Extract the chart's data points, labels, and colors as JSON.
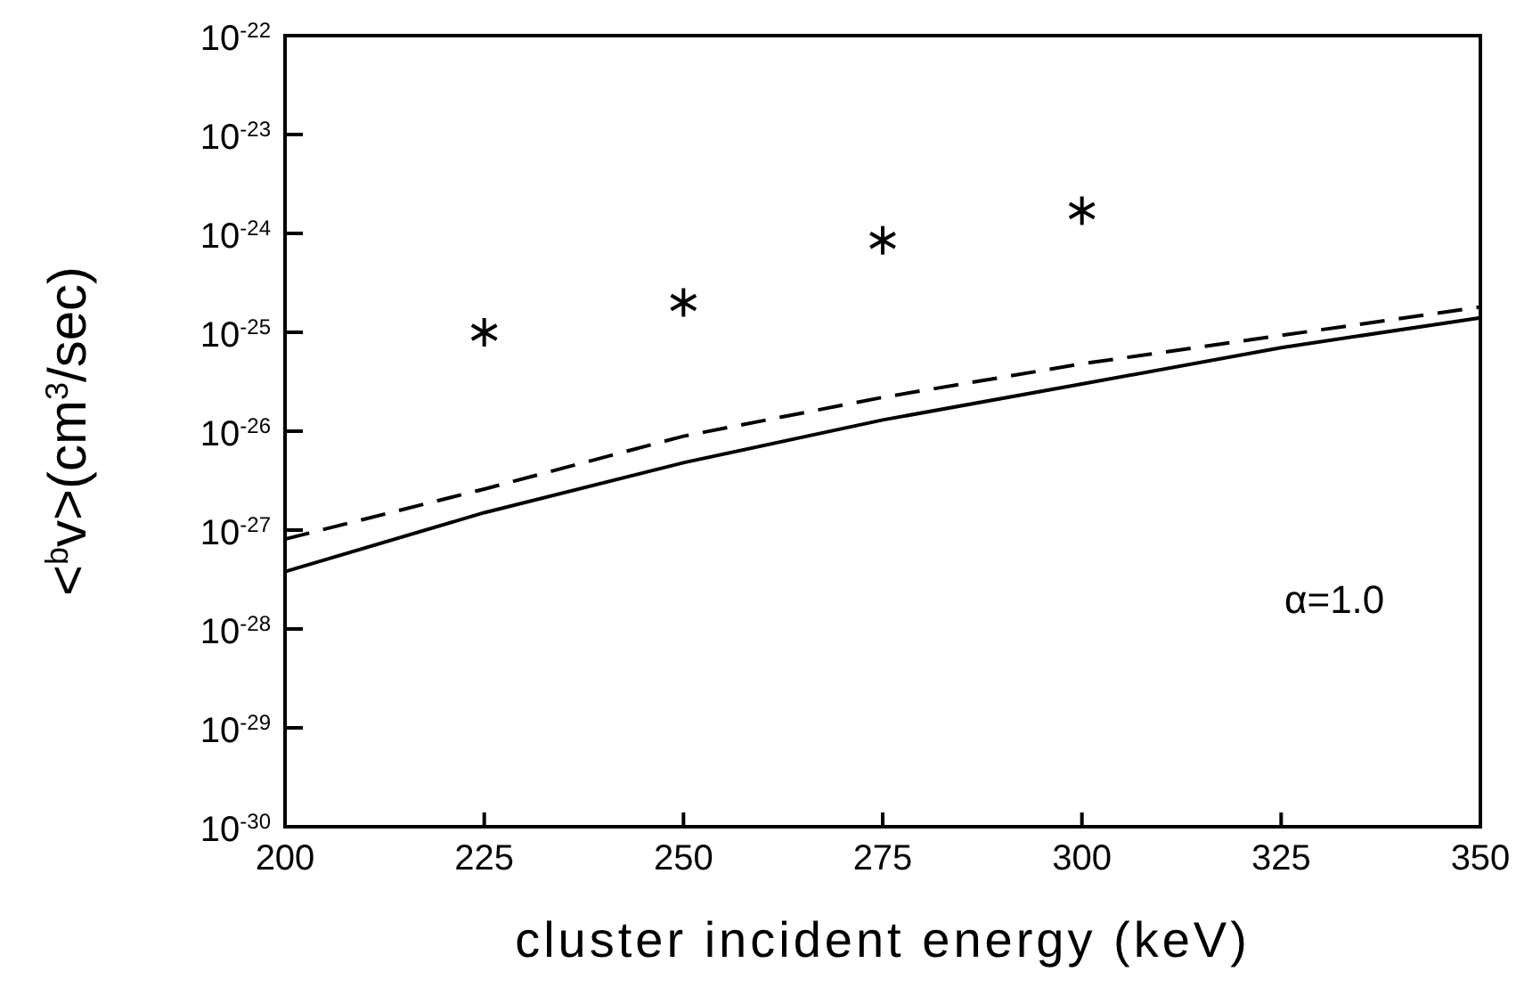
{
  "chart_data": {
    "type": "line",
    "xlabel": "cluster incident energy (keV)",
    "ylabel": "<$^{b}$v>(cm$^{3}$/sec)",
    "log": "y",
    "grid": false,
    "xlim": [
      200,
      350
    ],
    "xticks": [
      200,
      225,
      250,
      275,
      300,
      325,
      350
    ],
    "ylim": [
      1e-30,
      1e-22
    ],
    "yticks": [
      {
        "value": 1e-30,
        "label": "10$^{-30}$"
      },
      {
        "value": 1e-29,
        "label": "10$^{-29}$"
      },
      {
        "value": 1e-28,
        "label": "10$^{-28}$"
      },
      {
        "value": 1e-27,
        "label": "10$^{-27}$"
      },
      {
        "value": 1e-26,
        "label": "10$^{-26}$"
      },
      {
        "value": 1e-25,
        "label": "10$^{-25}$"
      },
      {
        "value": 1e-24,
        "label": "10$^{-24}$"
      },
      {
        "value": 1e-23,
        "label": "10$^{-23}$"
      },
      {
        "value": 1e-22,
        "label": "10$^{-22}$"
      }
    ],
    "annotations": [
      "α=1.0"
    ],
    "series": [
      {
        "type": "scatter",
        "color": "#000000",
        "marker": "cross",
        "x": [
          225,
          250,
          275,
          300
        ],
        "values": [
          1e-25,
          2e-25,
          8.5e-25,
          1.7e-24
        ]
      },
      {
        "color": "#000000",
        "line_style": "solid",
        "marker": "none",
        "x": [
          200,
          225,
          250,
          275,
          300,
          325,
          350
        ],
        "values": [
          3.8e-28,
          1.5e-27,
          4.8e-27,
          1.3e-26,
          3e-26,
          7e-26,
          1.4e-25
        ]
      },
      {
        "color": "#000000",
        "line_style": "dashed",
        "marker": "none",
        "x": [
          200,
          225,
          250,
          275,
          300,
          325,
          350
        ],
        "values": [
          8.1e-28,
          2.6e-27,
          8.9e-27,
          2.2e-26,
          4.8e-26,
          9.3e-26,
          1.8e-25
        ]
      }
    ]
  }
}
